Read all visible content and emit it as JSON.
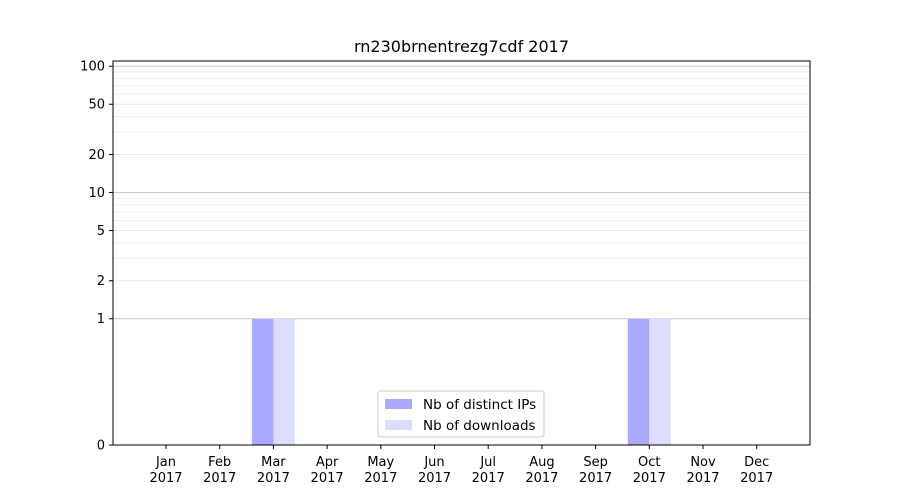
{
  "chart_data": {
    "type": "bar",
    "title": "rn230brnentrezg7cdf 2017",
    "xlabel": "",
    "ylabel": "",
    "y_scale": "symlog",
    "ylim": [
      0,
      110
    ],
    "y_ticks": [
      0,
      1,
      2,
      5,
      10,
      20,
      50,
      100
    ],
    "y_tick_labels": [
      "0",
      "1",
      "2",
      "5",
      "10",
      "20",
      "50",
      "100"
    ],
    "grid": true,
    "legend_position": "bottom-center",
    "categories": [
      {
        "month": "Jan",
        "year": "2017"
      },
      {
        "month": "Feb",
        "year": "2017"
      },
      {
        "month": "Mar",
        "year": "2017"
      },
      {
        "month": "Apr",
        "year": "2017"
      },
      {
        "month": "May",
        "year": "2017"
      },
      {
        "month": "Jun",
        "year": "2017"
      },
      {
        "month": "Jul",
        "year": "2017"
      },
      {
        "month": "Aug",
        "year": "2017"
      },
      {
        "month": "Sep",
        "year": "2017"
      },
      {
        "month": "Oct",
        "year": "2017"
      },
      {
        "month": "Nov",
        "year": "2017"
      },
      {
        "month": "Dec",
        "year": "2017"
      }
    ],
    "series": [
      {
        "name": "Nb of distinct IPs",
        "color": "#aaaaff",
        "values": [
          0,
          0,
          1,
          0,
          0,
          0,
          0,
          0,
          0,
          1,
          0,
          0
        ]
      },
      {
        "name": "Nb of downloads",
        "color": "#ddddff",
        "values": [
          0,
          0,
          1,
          0,
          0,
          0,
          0,
          0,
          0,
          1,
          0,
          0
        ]
      }
    ]
  }
}
